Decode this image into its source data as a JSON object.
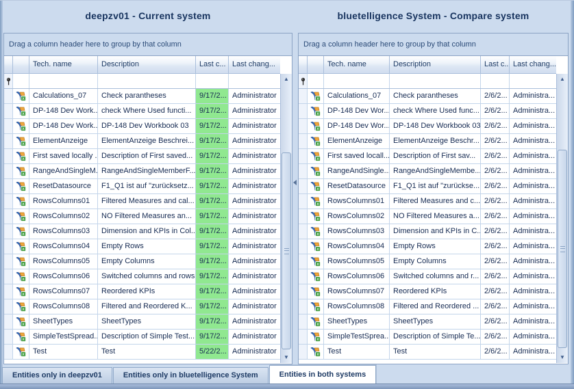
{
  "colors": {
    "green_highlight": "#90e890"
  },
  "left_panel": {
    "title": "deepzv01 -  Current system",
    "group_hint": "Drag a column header here to group by that column",
    "columns": [
      "Tech. name",
      "Description",
      "Last c...",
      "Last chang..."
    ],
    "rows": [
      {
        "tech": "Calculations_07",
        "desc": "Check parantheses",
        "date": "9/17/2...",
        "user": "Administrator"
      },
      {
        "tech": "DP-148 Dev Work...",
        "desc": "check Where Used functi...",
        "date": "9/17/2...",
        "user": "Administrator"
      },
      {
        "tech": "DP-148 Dev Work...",
        "desc": "DP-148 Dev Workbook 03",
        "date": "9/17/2...",
        "user": "Administrator"
      },
      {
        "tech": "ElementAnzeige",
        "desc": "ElementAnzeige Beschrei...",
        "date": "9/17/2...",
        "user": "Administrator"
      },
      {
        "tech": "First saved locally ...",
        "desc": "Description of First saved...",
        "date": "9/17/2...",
        "user": "Administrator"
      },
      {
        "tech": "RangeAndSingleM...",
        "desc": "RangeAndSingleMemberF...",
        "date": "9/17/2...",
        "user": "Administrator"
      },
      {
        "tech": "ResetDatasource",
        "desc": "F1_Q1 ist auf \"zurücksetz...",
        "date": "9/17/2...",
        "user": "Administrator"
      },
      {
        "tech": "RowsColumns01",
        "desc": "Filtered Measures and cal...",
        "date": "9/17/2...",
        "user": "Administrator"
      },
      {
        "tech": "RowsColumns02",
        "desc": "NO Filtered Measures an...",
        "date": "9/17/2...",
        "user": "Administrator"
      },
      {
        "tech": "RowsColumns03",
        "desc": "Dimension and KPIs in Col...",
        "date": "9/17/2...",
        "user": "Administrator"
      },
      {
        "tech": "RowsColumns04",
        "desc": "Empty Rows",
        "date": "9/17/2...",
        "user": "Administrator"
      },
      {
        "tech": "RowsColumns05",
        "desc": "Empty Columns",
        "date": "9/17/2...",
        "user": "Administrator"
      },
      {
        "tech": "RowsColumns06",
        "desc": "Switched columns and rows",
        "date": "9/17/2...",
        "user": "Administrator"
      },
      {
        "tech": "RowsColumns07",
        "desc": "Reordered KPIs",
        "date": "9/17/2...",
        "user": "Administrator"
      },
      {
        "tech": "RowsColumns08",
        "desc": "Filtered and Reordered K...",
        "date": "9/17/2...",
        "user": "Administrator"
      },
      {
        "tech": "SheetTypes",
        "desc": "SheetTypes",
        "date": "9/17/2...",
        "user": "Administrator"
      },
      {
        "tech": "SimpleTestSpread...",
        "desc": "Description of Simple Test...",
        "date": "9/17/2...",
        "user": "Administrator"
      },
      {
        "tech": "Test",
        "desc": "Test",
        "date": "5/22/2...",
        "user": "Administrator"
      }
    ]
  },
  "right_panel": {
    "title": "bluetelligence System -  Compare system",
    "group_hint": "Drag a column header here to group by that column",
    "columns": [
      "Tech. name",
      "Description",
      "Last c...",
      "Last chang..."
    ],
    "rows": [
      {
        "tech": "Calculations_07",
        "desc": "Check parantheses",
        "date": "2/6/2...",
        "user": "Administra..."
      },
      {
        "tech": "DP-148 Dev Wor...",
        "desc": "check Where Used func...",
        "date": "2/6/2...",
        "user": "Administra..."
      },
      {
        "tech": "DP-148 Dev Wor...",
        "desc": "DP-148 Dev Workbook 03",
        "date": "2/6/2...",
        "user": "Administra..."
      },
      {
        "tech": "ElementAnzeige",
        "desc": "ElementAnzeige Beschr...",
        "date": "2/6/2...",
        "user": "Administra..."
      },
      {
        "tech": "First saved locall...",
        "desc": "Description of First sav...",
        "date": "2/6/2...",
        "user": "Administra..."
      },
      {
        "tech": "RangeAndSingle...",
        "desc": "RangeAndSingleMembe...",
        "date": "2/6/2...",
        "user": "Administra..."
      },
      {
        "tech": "ResetDatasource",
        "desc": "F1_Q1 ist auf \"zurückse...",
        "date": "2/6/2...",
        "user": "Administra..."
      },
      {
        "tech": "RowsColumns01",
        "desc": "Filtered Measures and c...",
        "date": "2/6/2...",
        "user": "Administra..."
      },
      {
        "tech": "RowsColumns02",
        "desc": "NO Filtered Measures a...",
        "date": "2/6/2...",
        "user": "Administra..."
      },
      {
        "tech": "RowsColumns03",
        "desc": "Dimension and KPIs in C...",
        "date": "2/6/2...",
        "user": "Administra..."
      },
      {
        "tech": "RowsColumns04",
        "desc": "Empty Rows",
        "date": "2/6/2...",
        "user": "Administra..."
      },
      {
        "tech": "RowsColumns05",
        "desc": "Empty Columns",
        "date": "2/6/2...",
        "user": "Administra..."
      },
      {
        "tech": "RowsColumns06",
        "desc": "Switched columns and r...",
        "date": "2/6/2...",
        "user": "Administra..."
      },
      {
        "tech": "RowsColumns07",
        "desc": "Reordered KPIs",
        "date": "2/6/2...",
        "user": "Administra..."
      },
      {
        "tech": "RowsColumns08",
        "desc": "Filtered and Reordered ...",
        "date": "2/6/2...",
        "user": "Administra..."
      },
      {
        "tech": "SheetTypes",
        "desc": "SheetTypes",
        "date": "2/6/2...",
        "user": "Administra..."
      },
      {
        "tech": "SimpleTestSprea...",
        "desc": "Description of Simple Te...",
        "date": "2/6/2...",
        "user": "Administra..."
      },
      {
        "tech": "Test",
        "desc": "Test",
        "date": "2/6/2...",
        "user": "Administra..."
      }
    ]
  },
  "scrollbar": {
    "up_glyph": "▲",
    "down_glyph": "▼"
  },
  "tabs": [
    {
      "label": "Entities only in deepzv01",
      "active": false
    },
    {
      "label": "Entities only in bluetelligence System",
      "active": false
    },
    {
      "label": "Entities in both systems",
      "active": true
    }
  ]
}
